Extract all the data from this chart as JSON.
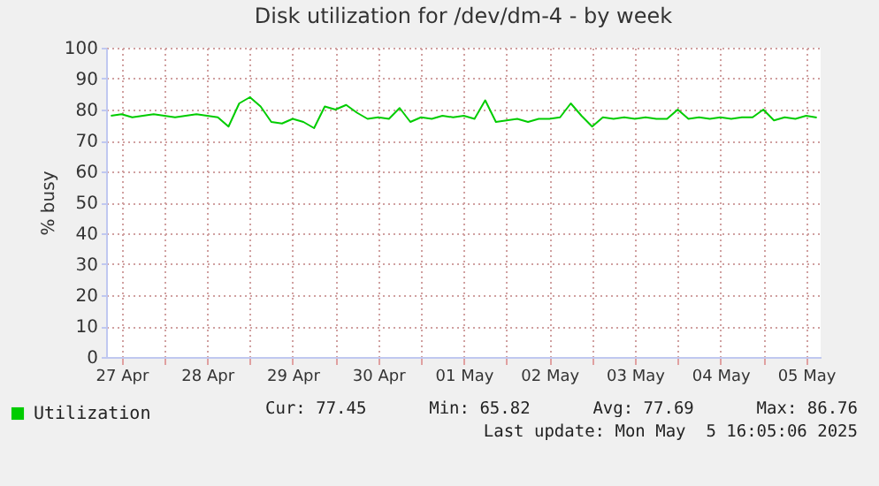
{
  "chart_data": {
    "type": "line",
    "title": "Disk utilization for /dev/dm-4 - by week",
    "ylabel": "% busy",
    "x": [
      "2025-04-27T09:00",
      "2025-04-27T12:00",
      "2025-04-27T15:00",
      "2025-04-27T18:00",
      "2025-04-27T21:00",
      "2025-04-28T00:00",
      "2025-04-28T03:00",
      "2025-04-28T06:00",
      "2025-04-28T09:00",
      "2025-04-28T12:00",
      "2025-04-28T15:00",
      "2025-04-28T18:00",
      "2025-04-28T21:00",
      "2025-04-29T00:00",
      "2025-04-29T03:00",
      "2025-04-29T06:00",
      "2025-04-29T09:00",
      "2025-04-29T12:00",
      "2025-04-29T15:00",
      "2025-04-29T18:00",
      "2025-04-29T21:00",
      "2025-04-30T00:00",
      "2025-04-30T03:00",
      "2025-04-30T06:00",
      "2025-04-30T09:00",
      "2025-04-30T12:00",
      "2025-04-30T15:00",
      "2025-04-30T18:00",
      "2025-04-30T21:00",
      "2025-05-01T00:00",
      "2025-05-01T03:00",
      "2025-05-01T06:00",
      "2025-05-01T09:00",
      "2025-05-01T12:00",
      "2025-05-01T15:00",
      "2025-05-01T18:00",
      "2025-05-01T21:00",
      "2025-05-02T00:00",
      "2025-05-02T03:00",
      "2025-05-02T06:00",
      "2025-05-02T09:00",
      "2025-05-02T12:00",
      "2025-05-02T15:00",
      "2025-05-02T18:00",
      "2025-05-02T21:00",
      "2025-05-03T00:00",
      "2025-05-03T03:00",
      "2025-05-03T06:00",
      "2025-05-03T09:00",
      "2025-05-03T12:00",
      "2025-05-03T15:00",
      "2025-05-03T18:00",
      "2025-05-03T21:00",
      "2025-05-04T00:00",
      "2025-05-04T03:00",
      "2025-05-04T06:00",
      "2025-05-04T09:00",
      "2025-05-04T12:00",
      "2025-05-04T15:00",
      "2025-05-04T18:00",
      "2025-05-04T21:00",
      "2025-05-05T00:00",
      "2025-05-05T03:00",
      "2025-05-05T06:00",
      "2025-05-05T09:00",
      "2025-05-05T12:00",
      "2025-05-05T15:00"
    ],
    "series": [
      {
        "name": "Utilization",
        "color": "#00cc00",
        "values": [
          78,
          78.5,
          77.5,
          78,
          78.5,
          78,
          77.5,
          78,
          78.5,
          78,
          77.5,
          74.5,
          82,
          84,
          81,
          76,
          75.5,
          77,
          76,
          74,
          81,
          80,
          81.5,
          79,
          77,
          77.5,
          77,
          80.5,
          76,
          77.5,
          77,
          78,
          77.5,
          78,
          77,
          83,
          76,
          76.5,
          77,
          76,
          77,
          77,
          77.5,
          82,
          78,
          74.5,
          77.5,
          77,
          77.5,
          77,
          77.5,
          77,
          77,
          80,
          77,
          77.5,
          77,
          77.5,
          77,
          77.5,
          77.5,
          80,
          76.5,
          77.5,
          77,
          78,
          77.45
        ]
      }
    ],
    "xlim": [
      "2025-04-27T07:40",
      "2025-05-05T16:05"
    ],
    "xticks": [
      {
        "value": "2025-04-27T12:00",
        "label": "27 Apr"
      },
      {
        "value": "2025-04-28T00:00",
        "label": null
      },
      {
        "value": "2025-04-28T12:00",
        "label": "28 Apr"
      },
      {
        "value": "2025-04-29T00:00",
        "label": null
      },
      {
        "value": "2025-04-29T12:00",
        "label": "29 Apr"
      },
      {
        "value": "2025-04-30T00:00",
        "label": null
      },
      {
        "value": "2025-04-30T12:00",
        "label": "30 Apr"
      },
      {
        "value": "2025-05-01T00:00",
        "label": null
      },
      {
        "value": "2025-05-01T12:00",
        "label": "01 May"
      },
      {
        "value": "2025-05-02T00:00",
        "label": null
      },
      {
        "value": "2025-05-02T12:00",
        "label": "02 May"
      },
      {
        "value": "2025-05-03T00:00",
        "label": null
      },
      {
        "value": "2025-05-03T12:00",
        "label": "03 May"
      },
      {
        "value": "2025-05-04T00:00",
        "label": null
      },
      {
        "value": "2025-05-04T12:00",
        "label": "04 May"
      },
      {
        "value": "2025-05-05T00:00",
        "label": null
      },
      {
        "value": "2025-05-05T12:00",
        "label": "05 May"
      }
    ],
    "ylim": [
      0,
      100
    ],
    "yticks": [
      0,
      10,
      20,
      30,
      40,
      50,
      60,
      70,
      80,
      90,
      100
    ],
    "grid": true,
    "legend": "bottom left",
    "marker": "none",
    "line_style": "solid",
    "annotations": [
      "Cur: 77.45",
      "Min: 65.82",
      "Avg: 77.69",
      "Max: 86.76",
      "Last update: Mon May  5 16:05:06 2025"
    ]
  }
}
